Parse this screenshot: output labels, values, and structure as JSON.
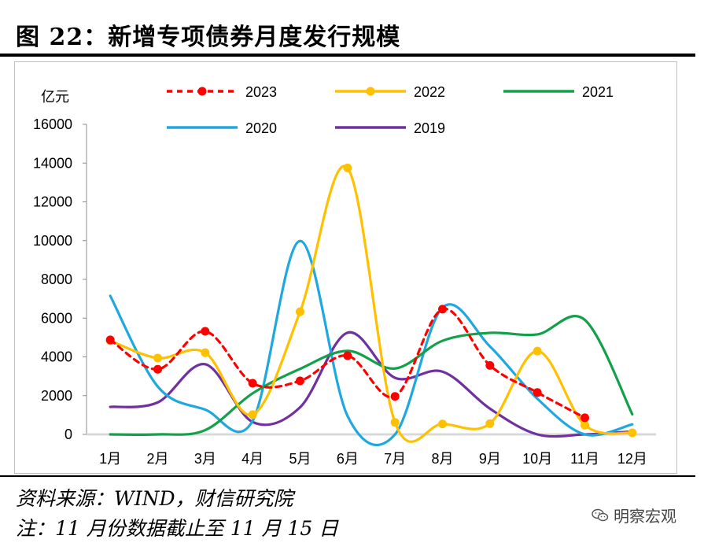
{
  "figure": {
    "title": "图 22：新增专项债券月度发行规模",
    "source_note": "资料来源：WIND，财信研究院",
    "footnote": "注：11 月份数据截止至 11 月 15 日",
    "watermark": "明察宏观"
  },
  "chart_data": {
    "type": "line",
    "title": "",
    "xlabel": "",
    "ylabel": "亿元",
    "ylim": [
      0,
      16000
    ],
    "yticks": [
      0,
      2000,
      4000,
      6000,
      8000,
      10000,
      12000,
      14000,
      16000
    ],
    "categories": [
      "1月",
      "2月",
      "3月",
      "4月",
      "5月",
      "6月",
      "7月",
      "8月",
      "9月",
      "10月",
      "11月",
      "12月"
    ],
    "grid": false,
    "legend_position": "top",
    "series": [
      {
        "name": "2023",
        "color": "#ff0000",
        "dashed": true,
        "markers": true,
        "values": [
          4880,
          3360,
          5320,
          2640,
          2760,
          4060,
          1960,
          6460,
          3560,
          2160,
          860,
          null
        ]
      },
      {
        "name": "2022",
        "color": "#ffc000",
        "dashed": false,
        "markers": true,
        "values": [
          4840,
          3940,
          4220,
          1020,
          6330,
          13750,
          620,
          540,
          560,
          4300,
          480,
          80
        ]
      },
      {
        "name": "2021",
        "color": "#13a04b",
        "dashed": false,
        "markers": false,
        "values": [
          0,
          0,
          220,
          2120,
          3380,
          4310,
          3400,
          4830,
          5240,
          5160,
          5910,
          1040
        ]
      },
      {
        "name": "2020",
        "color": "#1fa8e0",
        "dashed": false,
        "markers": false,
        "values": [
          7150,
          2470,
          1280,
          700,
          9980,
          950,
          0,
          6540,
          4540,
          1840,
          0,
          520
        ]
      },
      {
        "name": "2019",
        "color": "#7030a0",
        "dashed": false,
        "markers": false,
        "values": [
          1420,
          1650,
          3620,
          640,
          1400,
          5250,
          2920,
          3240,
          1330,
          0,
          0,
          150
        ]
      }
    ]
  }
}
